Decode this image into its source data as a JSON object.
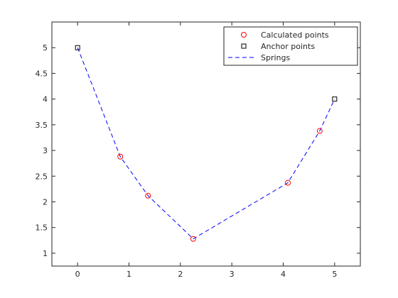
{
  "chart_data": {
    "type": "line",
    "title": "",
    "xlabel": "",
    "ylabel": "",
    "xlim": [
      -0.5,
      5.5
    ],
    "ylim": [
      0.75,
      5.5
    ],
    "xticks": [
      0,
      1,
      2,
      3,
      4,
      5
    ],
    "yticks": [
      1,
      1.5,
      2,
      2.5,
      3,
      3.5,
      4,
      4.5,
      5
    ],
    "xtick_labels": [
      "0",
      "1",
      "2",
      "3",
      "4",
      "5"
    ],
    "ytick_labels": [
      "1",
      "1.5",
      "2",
      "2.5",
      "3",
      "3.5",
      "4",
      "4.5",
      "5"
    ],
    "grid": false,
    "legend_position": "top-right",
    "series": [
      {
        "name": "Calculated points",
        "style": "marker",
        "marker": "circle",
        "color": "#ff0000",
        "x": [
          0.83,
          1.37,
          2.25,
          4.09,
          4.71
        ],
        "y": [
          2.88,
          2.12,
          1.28,
          2.37,
          3.38
        ]
      },
      {
        "name": "Anchor points",
        "style": "marker",
        "marker": "square",
        "color": "#000000",
        "x": [
          0,
          5
        ],
        "y": [
          5,
          4
        ]
      },
      {
        "name": "Springs",
        "style": "dashed-line",
        "color": "#0000ff",
        "x": [
          0,
          0.83,
          1.37,
          2.25,
          4.09,
          4.71,
          5
        ],
        "y": [
          5,
          2.88,
          2.12,
          1.28,
          2.37,
          3.38,
          4
        ]
      }
    ]
  }
}
